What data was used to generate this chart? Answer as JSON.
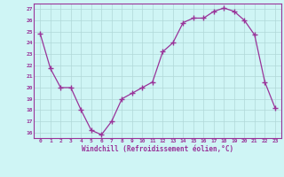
{
  "x": [
    0,
    1,
    2,
    3,
    4,
    5,
    6,
    7,
    8,
    9,
    10,
    11,
    12,
    13,
    14,
    15,
    16,
    17,
    18,
    19,
    20,
    21,
    22,
    23
  ],
  "y": [
    24.8,
    21.7,
    20.0,
    20.0,
    18.0,
    16.2,
    15.8,
    17.0,
    19.0,
    19.5,
    20.0,
    20.5,
    23.2,
    24.0,
    25.8,
    26.2,
    26.2,
    26.8,
    27.1,
    26.8,
    26.0,
    24.7,
    20.5,
    18.2
  ],
  "line_color": "#993399",
  "marker": "+",
  "marker_size": 4,
  "marker_lw": 1.0,
  "bg_color": "#cff5f5",
  "grid_color": "#b0d8d8",
  "xlabel": "Windchill (Refroidissement éolien,°C)",
  "xlabel_color": "#993399",
  "tick_color": "#993399",
  "ylim": [
    15.5,
    27.5
  ],
  "yticks": [
    16,
    17,
    18,
    19,
    20,
    21,
    22,
    23,
    24,
    25,
    26,
    27
  ],
  "xticks": [
    0,
    1,
    2,
    3,
    4,
    5,
    6,
    7,
    8,
    9,
    10,
    11,
    12,
    13,
    14,
    15,
    16,
    17,
    18,
    19,
    20,
    21,
    22,
    23
  ],
  "spine_color": "#993399"
}
